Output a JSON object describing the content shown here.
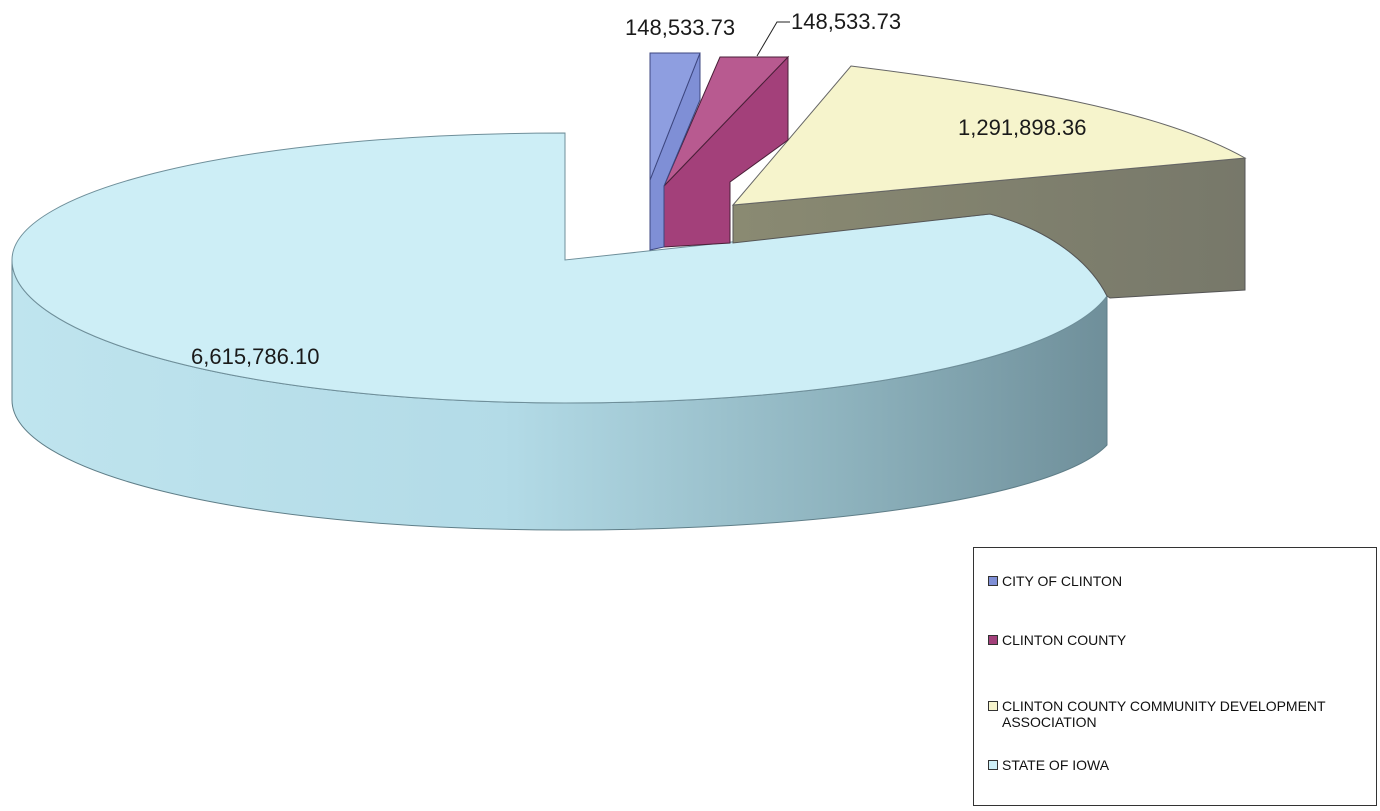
{
  "chart_data": {
    "type": "pie",
    "style": "3d-exploded",
    "title": "",
    "legend_placement": "bottom-right",
    "slices": [
      {
        "name": "CITY OF CLINTON",
        "value": 148533.73,
        "label": "148,533.73",
        "color": "#7f8fd6"
      },
      {
        "name": "CLINTON COUNTY",
        "value": 148533.73,
        "label": "148,533.73",
        "color": "#a3407a"
      },
      {
        "name": "CLINTON COUNTY COMMUNITY DEVELOPMENT ASSOCIATION",
        "value": 1291898.36,
        "label": "1,291,898.36",
        "color": "#f6f4cc"
      },
      {
        "name": "STATE OF IOWA",
        "value": 6615786.1,
        "label": "6,615,786.10",
        "color": "#cdeef6"
      }
    ]
  }
}
